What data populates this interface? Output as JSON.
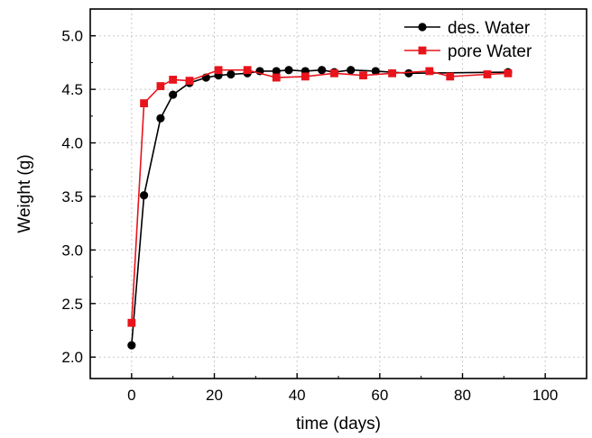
{
  "chart_data": {
    "type": "line",
    "title": "",
    "xlabel": "time (days)",
    "ylabel": "Weight (g)",
    "xlim": [
      -10,
      110
    ],
    "ylim": [
      1.8,
      5.25
    ],
    "x_ticks": [
      0,
      20,
      40,
      60,
      80,
      100
    ],
    "y_ticks": [
      2.0,
      2.5,
      3.0,
      3.5,
      4.0,
      4.5,
      5.0
    ],
    "x_tick_labels": [
      "0",
      "20",
      "40",
      "60",
      "80",
      "100"
    ],
    "y_tick_labels": [
      "2.0",
      "2.5",
      "3.0",
      "3.5",
      "4.0",
      "4.5",
      "5.0"
    ],
    "grid": true,
    "legend_position": "top-right",
    "series": [
      {
        "name": "des. Water",
        "color": "#000000",
        "marker": "circle",
        "x": [
          0,
          3,
          7,
          10,
          14,
          18,
          21,
          24,
          28,
          31,
          35,
          38,
          42,
          46,
          49,
          53,
          59,
          67,
          91
        ],
        "y": [
          2.11,
          3.51,
          4.23,
          4.45,
          4.56,
          4.61,
          4.63,
          4.64,
          4.65,
          4.67,
          4.67,
          4.68,
          4.67,
          4.68,
          4.66,
          4.68,
          4.67,
          4.65,
          4.66
        ]
      },
      {
        "name": "pore Water",
        "color": "#e8141c",
        "marker": "square",
        "x": [
          0,
          3,
          7,
          10,
          14,
          21,
          28,
          35,
          42,
          49,
          56,
          63,
          72,
          77,
          86,
          91
        ],
        "y": [
          2.32,
          4.37,
          4.53,
          4.59,
          4.58,
          4.68,
          4.68,
          4.61,
          4.62,
          4.65,
          4.63,
          4.65,
          4.67,
          4.62,
          4.64,
          4.65
        ]
      }
    ]
  }
}
